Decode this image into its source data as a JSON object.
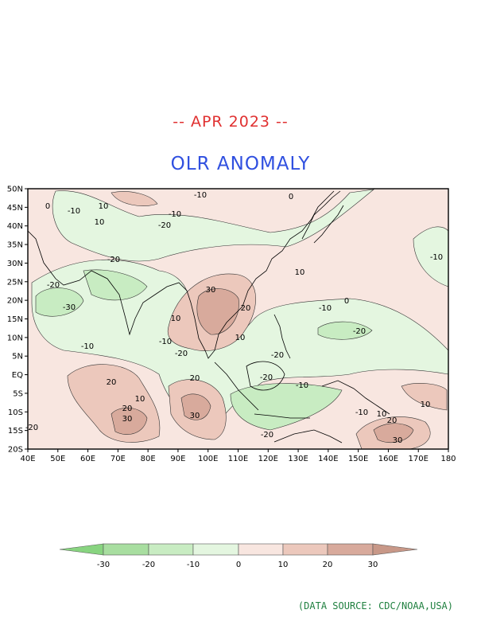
{
  "header": {
    "date": "-- APR 2023 --",
    "title": "OLR ANOMALY"
  },
  "map": {
    "lat_labels": [
      "50N",
      "45N",
      "40N",
      "35N",
      "30N",
      "25N",
      "20N",
      "15N",
      "10N",
      "5N",
      "EQ",
      "5S",
      "10S",
      "15S",
      "20S"
    ],
    "lon_labels": [
      "40E",
      "50E",
      "60E",
      "70E",
      "80E",
      "90E",
      "100E",
      "110E",
      "120E",
      "130E",
      "140E",
      "150E",
      "160E",
      "170E",
      "180"
    ],
    "contour_labels": [
      {
        "text": "10"
      },
      {
        "text": "-10"
      },
      {
        "text": "0"
      },
      {
        "text": "-20"
      },
      {
        "text": "-10"
      },
      {
        "text": "0"
      },
      {
        "text": "10"
      },
      {
        "text": "-20"
      },
      {
        "text": "-20"
      },
      {
        "text": "-10"
      },
      {
        "text": "10"
      },
      {
        "text": "-10"
      },
      {
        "text": "-20"
      },
      {
        "text": "-30"
      },
      {
        "text": "30"
      },
      {
        "text": "20"
      },
      {
        "text": "10"
      },
      {
        "text": "10"
      },
      {
        "text": "-10"
      },
      {
        "text": "-20"
      },
      {
        "text": "-20"
      },
      {
        "text": "-10"
      },
      {
        "text": "-20"
      },
      {
        "text": "20"
      },
      {
        "text": "10"
      },
      {
        "text": "20"
      },
      {
        "text": "30"
      },
      {
        "text": "20"
      },
      {
        "text": "30"
      },
      {
        "text": "-20"
      },
      {
        "text": "-10"
      },
      {
        "text": "-10"
      },
      {
        "text": "-20"
      },
      {
        "text": "10"
      },
      {
        "text": "20"
      },
      {
        "text": "30"
      },
      {
        "text": "10"
      },
      {
        "text": "0"
      },
      {
        "text": "-10"
      }
    ]
  },
  "colorbar": {
    "labels": [
      "-30",
      "-20",
      "-10",
      "0",
      "10",
      "20",
      "30"
    ],
    "colors": [
      "#a8dea0",
      "#c8ecc2",
      "#e4f6e0",
      "#f8e6e0",
      "#ecc8bc",
      "#d8aa9c"
    ],
    "end_low": "#88d480",
    "end_high": "#c89888"
  },
  "source": "(DATA SOURCE: CDC/NOAA,USA)"
}
